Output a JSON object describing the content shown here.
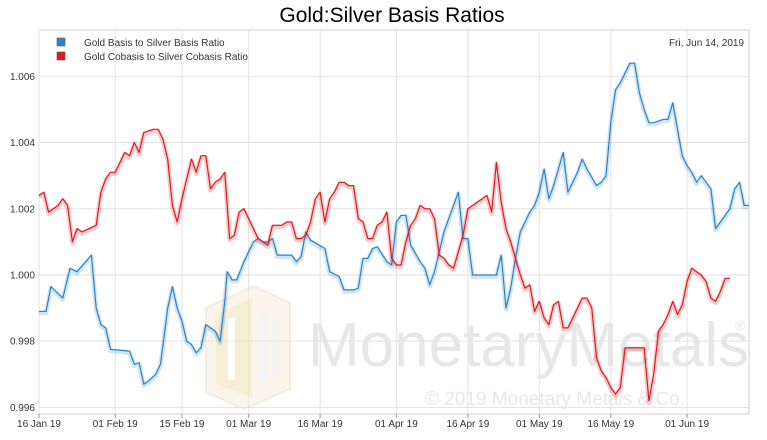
{
  "chart_data": {
    "type": "line",
    "title": "Gold:Silver Basis Ratios",
    "date_label": "Fri, Jun 14, 2019",
    "xlabel": "",
    "ylabel": "",
    "x_ticks": [
      "16 Jan 19",
      "01 Feb 19",
      "15 Feb 19",
      "01 Mar 19",
      "16 Mar 19",
      "01 Apr 19",
      "16 Apr 19",
      "01 May 19",
      "16 May 19",
      "01 Jun 19"
    ],
    "x_tick_days": [
      0,
      16,
      30,
      44,
      59,
      75,
      90,
      105,
      120,
      136
    ],
    "xlim_days": [
      0,
      149
    ],
    "ylim": [
      0.9958,
      1.0074
    ],
    "y_ticks": [
      0.996,
      0.998,
      1.0,
      1.002,
      1.004,
      1.006
    ],
    "y_tick_labels": [
      "0.996",
      "0.998",
      "1.000",
      "1.002",
      "1.004",
      "1.006"
    ],
    "grid": true,
    "legend_position": "top-left",
    "series": [
      {
        "name": "Gold Basis to Silver Basis Ratio",
        "color": "#2b84c8",
        "points": [
          [
            0,
            0.9989
          ],
          [
            1.5,
            0.9989
          ],
          [
            2.5,
            0.99965
          ],
          [
            5,
            0.9993
          ],
          [
            6.5,
            1.0002
          ],
          [
            8,
            1.0001
          ],
          [
            11,
            1.0006
          ],
          [
            12,
            0.999
          ],
          [
            13,
            0.9985
          ],
          [
            14,
            0.9984
          ],
          [
            15,
            0.99775
          ],
          [
            19,
            0.9977
          ],
          [
            20,
            0.9973
          ],
          [
            21,
            0.99735
          ],
          [
            22,
            0.9967
          ],
          [
            23,
            0.9968
          ],
          [
            24.5,
            0.997
          ],
          [
            25.5,
            0.9973
          ],
          [
            27,
            0.999
          ],
          [
            28,
            0.99965
          ],
          [
            29,
            0.999
          ],
          [
            30,
            0.9986
          ],
          [
            31,
            0.998
          ],
          [
            32,
            0.9979
          ],
          [
            33,
            0.99765
          ],
          [
            34,
            0.9978
          ],
          [
            35,
            0.9985
          ],
          [
            37,
            0.9983
          ],
          [
            38,
            0.998
          ],
          [
            39,
            0.9992
          ],
          [
            39.5,
            1.0001
          ],
          [
            40.5,
            0.99985
          ],
          [
            41.5,
            0.99985
          ],
          [
            43,
            1.0004
          ],
          [
            44,
            1.0007
          ],
          [
            45,
            1.001
          ],
          [
            46,
            1.0011
          ],
          [
            47,
            1.001
          ],
          [
            48,
            1.001
          ],
          [
            49,
            1.0011
          ],
          [
            50,
            1.0006
          ],
          [
            52,
            1.0006
          ],
          [
            53,
            1.0006
          ],
          [
            54,
            1.0004
          ],
          [
            55,
            1.00055
          ],
          [
            56,
            1.0013
          ],
          [
            57,
            1.00105
          ],
          [
            60,
            1.0008
          ],
          [
            61,
            1.0001
          ],
          [
            63,
            0.99995
          ],
          [
            64,
            0.99955
          ],
          [
            66,
            0.99955
          ],
          [
            67,
            0.9996
          ],
          [
            68,
            1.0005
          ],
          [
            69,
            1.0005
          ],
          [
            70,
            1.0008
          ],
          [
            71,
            1.00085
          ],
          [
            73,
            1.0004
          ],
          [
            74,
            1.0003
          ],
          [
            75,
            1.0016
          ],
          [
            76,
            1.0018
          ],
          [
            77,
            1.0018
          ],
          [
            78,
            1.0009
          ],
          [
            80,
            1.0004
          ],
          [
            81,
            1.0002
          ],
          [
            82,
            0.9997
          ],
          [
            83,
            1.0001
          ],
          [
            85,
            1.0013
          ],
          [
            88,
            1.0025
          ],
          [
            89,
            1.0011
          ],
          [
            90,
            1.0011
          ],
          [
            91,
            1.0
          ],
          [
            93,
            1.0
          ],
          [
            94,
            1.0
          ],
          [
            95,
            1.0
          ],
          [
            96,
            1.0
          ],
          [
            97,
            1.0006
          ],
          [
            98,
            0.999
          ],
          [
            99,
            0.9996
          ],
          [
            100,
            1.0005
          ],
          [
            101,
            1.0013
          ],
          [
            103,
            1.0019
          ],
          [
            104,
            1.0021
          ],
          [
            105,
            1.0025
          ],
          [
            106,
            1.0032
          ],
          [
            107,
            1.0023
          ],
          [
            108,
            1.0027
          ],
          [
            110,
            1.0037
          ],
          [
            111,
            1.0025
          ],
          [
            113,
            1.0031
          ],
          [
            114,
            1.0035
          ],
          [
            115,
            1.0032
          ],
          [
            117,
            1.0027
          ],
          [
            118,
            1.0028
          ],
          [
            119,
            1.003
          ],
          [
            120,
            1.0046
          ],
          [
            121,
            1.0056
          ],
          [
            122,
            1.0058
          ],
          [
            123,
            1.0061
          ],
          [
            124,
            1.0064
          ],
          [
            125,
            1.0064
          ],
          [
            126,
            1.0055
          ],
          [
            127,
            1.005
          ],
          [
            128,
            1.0046
          ],
          [
            129,
            1.0046
          ],
          [
            131,
            1.0047
          ],
          [
            132,
            1.0047
          ],
          [
            133,
            1.0052
          ],
          [
            134,
            1.0044
          ],
          [
            135,
            1.0036
          ],
          [
            136,
            1.0033
          ],
          [
            137,
            1.0031
          ],
          [
            138,
            1.0028
          ],
          [
            139,
            1.003
          ],
          [
            140,
            1.0028
          ],
          [
            141,
            1.0026
          ],
          [
            142,
            1.0014
          ],
          [
            143,
            1.0016
          ],
          [
            145,
            1.002
          ],
          [
            146,
            1.0026
          ],
          [
            147,
            1.0028
          ],
          [
            148,
            1.0021
          ],
          [
            149,
            1.0021
          ]
        ]
      },
      {
        "name": "Gold Cobasis to Silver Cobasis Ratio",
        "color": "#e0191f",
        "points": [
          [
            0,
            1.0024
          ],
          [
            1,
            1.0025
          ],
          [
            2,
            1.0019
          ],
          [
            3,
            1.002
          ],
          [
            4,
            1.0021
          ],
          [
            5,
            1.0023
          ],
          [
            6,
            1.0021
          ],
          [
            7,
            1.001
          ],
          [
            8,
            1.0014
          ],
          [
            9,
            1.0013
          ],
          [
            12,
            1.0015
          ],
          [
            13,
            1.0025
          ],
          [
            14,
            1.0029
          ],
          [
            15,
            1.0031
          ],
          [
            16,
            1.0031
          ],
          [
            17,
            1.0034
          ],
          [
            18,
            1.0037
          ],
          [
            19,
            1.0036
          ],
          [
            20,
            1.004
          ],
          [
            21,
            1.0037
          ],
          [
            22,
            1.0043
          ],
          [
            24,
            1.0044
          ],
          [
            25,
            1.0044
          ],
          [
            26,
            1.0041
          ],
          [
            27,
            1.0035
          ],
          [
            28,
            1.0021
          ],
          [
            29,
            1.0016
          ],
          [
            30,
            1.0023
          ],
          [
            31,
            1.0029
          ],
          [
            32,
            1.0035
          ],
          [
            33,
            1.0031
          ],
          [
            34,
            1.0036
          ],
          [
            35,
            1.0036
          ],
          [
            36,
            1.0026
          ],
          [
            37,
            1.0028
          ],
          [
            38,
            1.0029
          ],
          [
            39,
            1.0031
          ],
          [
            40,
            1.0011
          ],
          [
            41,
            1.0012
          ],
          [
            42,
            1.0019
          ],
          [
            43,
            1.002
          ],
          [
            44,
            1.0017
          ],
          [
            45,
            1.0014
          ],
          [
            46,
            1.0011
          ],
          [
            47,
            1.001
          ],
          [
            48,
            1.0009
          ],
          [
            49,
            1.0015
          ],
          [
            50,
            1.0015
          ],
          [
            51,
            1.0015
          ],
          [
            52,
            1.0016
          ],
          [
            53,
            1.0016
          ],
          [
            54,
            1.0011
          ],
          [
            55,
            1.0011
          ],
          [
            56,
            1.0012
          ],
          [
            57,
            1.0016
          ],
          [
            58,
            1.0023
          ],
          [
            59,
            1.0025
          ],
          [
            60,
            1.0016
          ],
          [
            61,
            1.0023
          ],
          [
            62,
            1.0025
          ],
          [
            63,
            1.0028
          ],
          [
            64,
            1.0028
          ],
          [
            65,
            1.0027
          ],
          [
            66,
            1.0027
          ],
          [
            67,
            1.0017
          ],
          [
            68,
            1.0016
          ],
          [
            69,
            1.0011
          ],
          [
            70,
            1.0011
          ],
          [
            71,
            1.0015
          ],
          [
            72,
            1.0016
          ],
          [
            73,
            1.0019
          ],
          [
            74,
            1.0005
          ],
          [
            75,
            1.0003
          ],
          [
            76,
            1.0003
          ],
          [
            77,
            1.001
          ],
          [
            78,
            1.0015
          ],
          [
            79,
            1.0017
          ],
          [
            80,
            1.0021
          ],
          [
            81,
            1.002
          ],
          [
            82,
            1.002
          ],
          [
            83,
            1.0017
          ],
          [
            84,
            1.0006
          ],
          [
            85,
            1.0005
          ],
          [
            86,
            1.0003
          ],
          [
            87,
            1.0002
          ],
          [
            88,
            1.0007
          ],
          [
            89,
            1.0012
          ],
          [
            90,
            1.002
          ],
          [
            92,
            1.0022
          ],
          [
            94,
            1.0024
          ],
          [
            95,
            1.0019
          ],
          [
            96,
            1.0034
          ],
          [
            97,
            1.0022
          ],
          [
            98,
            1.0014
          ],
          [
            99,
            1.001
          ],
          [
            100,
            1.0005
          ],
          [
            101,
            1.0
          ],
          [
            102,
            0.9996
          ],
          [
            103,
            0.9997
          ],
          [
            104,
            0.9989
          ],
          [
            105,
            0.9992
          ],
          [
            106,
            0.9987
          ],
          [
            107,
            0.9985
          ],
          [
            108,
            0.9991
          ],
          [
            109,
            0.9992
          ],
          [
            110,
            0.9984
          ],
          [
            111,
            0.9984
          ],
          [
            112,
            0.9987
          ],
          [
            113,
            0.999
          ],
          [
            114,
            0.9993
          ],
          [
            115,
            0.9993
          ],
          [
            116,
            0.999
          ],
          [
            117,
            0.9975
          ],
          [
            118,
            0.9971
          ],
          [
            119,
            0.9969
          ],
          [
            120,
            0.9966
          ],
          [
            121,
            0.9964
          ],
          [
            122,
            0.9966
          ],
          [
            123,
            0.9978
          ],
          [
            124,
            0.9978
          ],
          [
            125,
            0.9978
          ],
          [
            126,
            0.9978
          ],
          [
            127,
            0.9978
          ],
          [
            128,
            0.9962
          ],
          [
            129,
            0.997
          ],
          [
            130,
            0.9983
          ],
          [
            131,
            0.9985
          ],
          [
            132,
            0.9988
          ],
          [
            133,
            0.9992
          ],
          [
            134,
            0.9988
          ],
          [
            135,
            0.9991
          ],
          [
            136,
            0.9998
          ],
          [
            137,
            1.0002
          ],
          [
            138,
            1.0001
          ],
          [
            139,
            1.0
          ],
          [
            140,
            0.9998
          ],
          [
            141,
            0.9993
          ],
          [
            142,
            0.9992
          ],
          [
            143,
            0.9995
          ],
          [
            144,
            0.9999
          ],
          [
            145,
            0.9999
          ]
        ]
      }
    ]
  },
  "watermark": {
    "brand": "MonetaryMetals",
    "brand_first": "Monetary",
    "brand_second": "Metals",
    "registered": "®",
    "copyright": "© 2019 Monetary Metals & Co."
  }
}
